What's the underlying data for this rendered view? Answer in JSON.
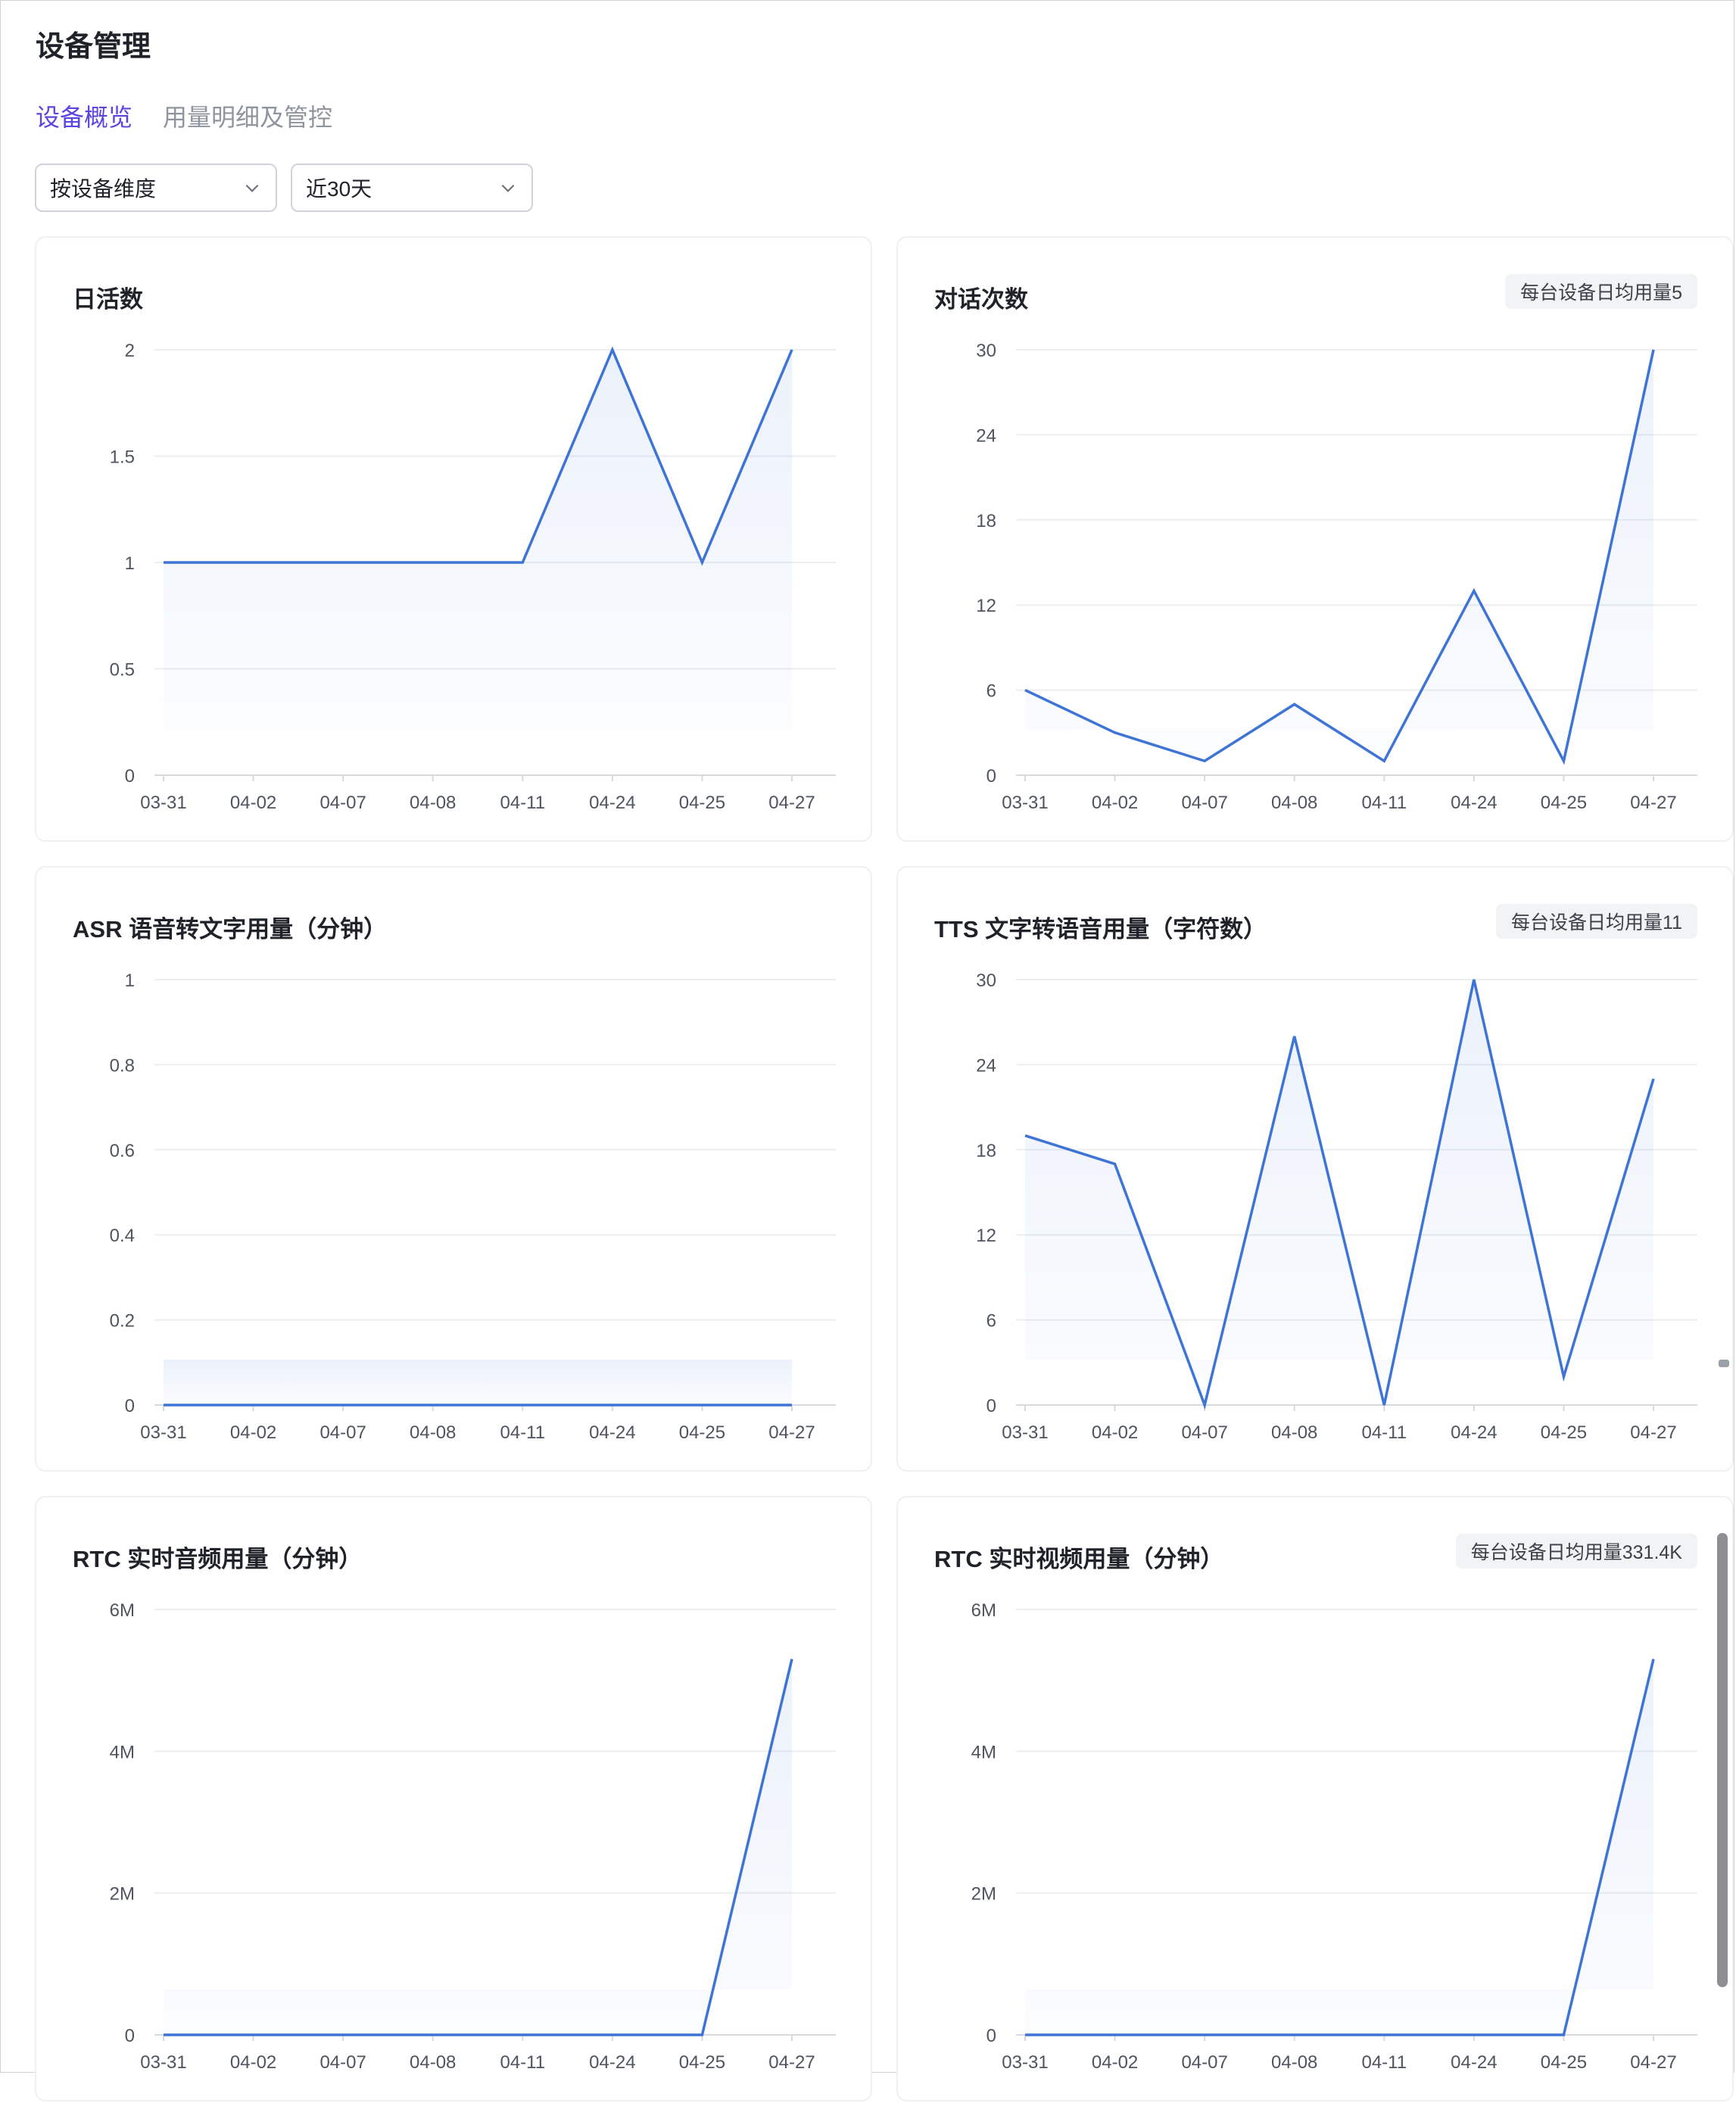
{
  "page": {
    "title": "设备管理"
  },
  "tabs": [
    {
      "label": "设备概览",
      "active": true
    },
    {
      "label": "用量明细及管控",
      "active": false
    }
  ],
  "filters": {
    "dimension": {
      "value": "按设备维度"
    },
    "range": {
      "value": "近30天"
    }
  },
  "colors": {
    "accent": "#5b45e0",
    "line": "#3d74d6"
  },
  "cards": [
    {
      "title": "日活数",
      "badge": ""
    },
    {
      "title": "对话次数",
      "badge": "每台设备日均用量5"
    },
    {
      "title": "ASR 语音转文字用量（分钟）",
      "badge": ""
    },
    {
      "title": "TTS 文字转语音用量（字符数）",
      "badge": "每台设备日均用量11"
    },
    {
      "title": "RTC 实时音频用量（分钟）",
      "badge": ""
    },
    {
      "title": "RTC 实时视频用量（分钟）",
      "badge": "每台设备日均用量331.4K"
    }
  ],
  "chart_data": [
    {
      "type": "area",
      "title": "日活数",
      "x": [
        "03-31",
        "04-02",
        "04-07",
        "04-08",
        "04-11",
        "04-24",
        "04-25",
        "04-27"
      ],
      "series": [
        {
          "values": [
            1,
            1,
            1,
            1,
            1,
            2,
            1,
            2
          ]
        }
      ],
      "yticks": [
        "0",
        "0.5",
        "1",
        "1.5",
        "2"
      ],
      "ylim": [
        0,
        2
      ],
      "grid": true
    },
    {
      "type": "area",
      "title": "对话次数",
      "x": [
        "03-31",
        "04-02",
        "04-07",
        "04-08",
        "04-11",
        "04-24",
        "04-25",
        "04-27"
      ],
      "series": [
        {
          "values": [
            6,
            3,
            1,
            5,
            1,
            13,
            1,
            30
          ]
        }
      ],
      "yticks": [
        "0",
        "6",
        "12",
        "18",
        "24",
        "30"
      ],
      "ylim": [
        0,
        30
      ],
      "grid": true
    },
    {
      "type": "area",
      "title": "ASR 语音转文字用量（分钟）",
      "x": [
        "03-31",
        "04-02",
        "04-07",
        "04-08",
        "04-11",
        "04-24",
        "04-25",
        "04-27"
      ],
      "series": [
        {
          "values": [
            0,
            0,
            0,
            0,
            0,
            0,
            0,
            0
          ]
        }
      ],
      "yticks": [
        "0",
        "0.2",
        "0.4",
        "0.6",
        "0.8",
        "1"
      ],
      "ylim": [
        0,
        1
      ],
      "grid": true
    },
    {
      "type": "area",
      "title": "TTS 文字转语音用量（字符数）",
      "x": [
        "03-31",
        "04-02",
        "04-07",
        "04-08",
        "04-11",
        "04-24",
        "04-25",
        "04-27"
      ],
      "series": [
        {
          "values": [
            19,
            17,
            0,
            26,
            0,
            30,
            2,
            23
          ]
        }
      ],
      "yticks": [
        "0",
        "6",
        "12",
        "18",
        "24",
        "30"
      ],
      "ylim": [
        0,
        30
      ],
      "grid": true
    },
    {
      "type": "area",
      "title": "RTC 实时音频用量（分钟）",
      "x": [
        "03-31",
        "04-02",
        "04-07",
        "04-08",
        "04-11",
        "04-24",
        "04-25",
        "04-27"
      ],
      "series": [
        {
          "values": [
            0,
            0,
            0,
            0,
            0,
            0,
            0,
            5300000
          ]
        }
      ],
      "yticks": [
        "0",
        "2M",
        "4M",
        "6M"
      ],
      "ylim": [
        0,
        6000000
      ],
      "grid": true
    },
    {
      "type": "area",
      "title": "RTC 实时视频用量（分钟）",
      "x": [
        "03-31",
        "04-02",
        "04-07",
        "04-08",
        "04-11",
        "04-24",
        "04-25",
        "04-27"
      ],
      "series": [
        {
          "values": [
            0,
            0,
            0,
            0,
            0,
            0,
            0,
            5300000
          ]
        }
      ],
      "yticks": [
        "0",
        "2M",
        "4M",
        "6M"
      ],
      "ylim": [
        0,
        6000000
      ],
      "grid": true
    }
  ]
}
